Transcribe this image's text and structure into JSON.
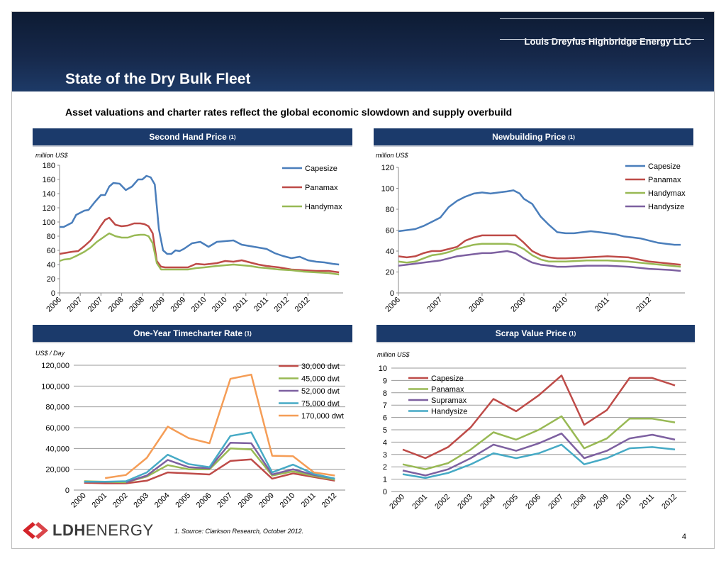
{
  "header": {
    "company": "Louis Dreyfus Highbridge Energy LLC",
    "title": "State of the Dry Bulk Fleet",
    "subtitle": "Asset valuations and charter rates reflect the global economic slowdown and supply overbuild"
  },
  "panels": {
    "p1": {
      "title": "Second Hand Price",
      "sup": "(1)",
      "unit": "million US$"
    },
    "p2": {
      "title": "Newbuilding Price",
      "sup": "(1)",
      "unit": "million US$"
    },
    "p3": {
      "title": "One-Year Timecharter Rate",
      "sup": "(1)",
      "unit": "US$ / Day"
    },
    "p4": {
      "title": "Scrap Value Price",
      "sup": "(1)",
      "unit": "million US$"
    }
  },
  "footer": {
    "footnote": "1.   Source: Clarkson Research, October 2012.",
    "page": "4",
    "logo_bold": "LDH",
    "logo_rest": "ENERGY"
  },
  "colors": {
    "blue": "#4a7ebb",
    "red": "#be4b48",
    "green": "#98b954",
    "purple": "#7d60a0",
    "teal": "#46aac5",
    "orange": "#f59d56"
  },
  "chart_data": [
    {
      "id": "second_hand",
      "type": "line",
      "ylim": [
        0,
        180
      ],
      "yticks": [
        0,
        20,
        40,
        60,
        80,
        100,
        120,
        140,
        160,
        180
      ],
      "xlim": [
        2006.0,
        2012.85
      ],
      "xticks": [
        2006.0,
        2006.5,
        2007.0,
        2007.5,
        2008.0,
        2008.5,
        2009.0,
        2009.5,
        2010.0,
        2010.5,
        2011.0,
        2011.5,
        2012.0
      ],
      "xticklabels": [
        "2006",
        "2007",
        "2007",
        "2008",
        "2008",
        "2009",
        "2009",
        "2010",
        "2010",
        "2011",
        "2011",
        "2012",
        "2012"
      ],
      "series": [
        {
          "name": "Capesize",
          "color": "#4a7ebb",
          "x": [
            2006.0,
            2006.1,
            2006.3,
            2006.4,
            2006.6,
            2006.7,
            2006.85,
            2007.0,
            2007.1,
            2007.2,
            2007.3,
            2007.45,
            2007.6,
            2007.75,
            2007.9,
            2008.0,
            2008.1,
            2008.2,
            2008.3,
            2008.4,
            2008.5,
            2008.6,
            2008.7,
            2008.8,
            2008.9,
            2009.0,
            2009.2,
            2009.4,
            2009.6,
            2009.8,
            2010.0,
            2010.2,
            2010.4,
            2010.6,
            2010.8,
            2011.0,
            2011.2,
            2011.4,
            2011.6,
            2011.8,
            2012.0,
            2012.2,
            2012.4,
            2012.6,
            2012.75
          ],
          "y": [
            93,
            93,
            99,
            110,
            116,
            117,
            128,
            138,
            138,
            150,
            155,
            154,
            145,
            150,
            160,
            160,
            165,
            163,
            153,
            90,
            60,
            55,
            55,
            60,
            59,
            62,
            70,
            72,
            65,
            72,
            73,
            74,
            68,
            66,
            64,
            62,
            56,
            52,
            49,
            51,
            46,
            44,
            43,
            41,
            40
          ]
        },
        {
          "name": "Panamax",
          "color": "#be4b48",
          "x": [
            2006.0,
            2006.1,
            2006.3,
            2006.45,
            2006.6,
            2006.75,
            2006.9,
            2007.0,
            2007.1,
            2007.2,
            2007.35,
            2007.5,
            2007.65,
            2007.8,
            2007.95,
            2008.05,
            2008.15,
            2008.25,
            2008.35,
            2008.45,
            2008.55,
            2008.7,
            2008.9,
            2009.1,
            2009.3,
            2009.5,
            2009.8,
            2010.0,
            2010.2,
            2010.4,
            2010.6,
            2010.8,
            2011.0,
            2011.3,
            2011.6,
            2011.9,
            2012.2,
            2012.5,
            2012.75
          ],
          "y": [
            55,
            56,
            58,
            59,
            66,
            74,
            86,
            95,
            103,
            106,
            96,
            94,
            95,
            98,
            98,
            97,
            94,
            84,
            45,
            37,
            36,
            36,
            36,
            36,
            41,
            40,
            42,
            45,
            44,
            46,
            43,
            40,
            38,
            36,
            33,
            32,
            31,
            31,
            29
          ]
        },
        {
          "name": "Handymax",
          "color": "#98b954",
          "x": [
            2006.0,
            2006.1,
            2006.25,
            2006.4,
            2006.6,
            2006.75,
            2006.9,
            2007.0,
            2007.1,
            2007.2,
            2007.35,
            2007.5,
            2007.65,
            2007.8,
            2007.95,
            2008.05,
            2008.15,
            2008.25,
            2008.35,
            2008.45,
            2008.55,
            2008.7,
            2008.9,
            2009.1,
            2009.3,
            2009.5,
            2009.8,
            2010.0,
            2010.2,
            2010.4,
            2010.6,
            2010.8,
            2011.0,
            2011.3,
            2011.6,
            2011.9,
            2012.2,
            2012.5,
            2012.75
          ],
          "y": [
            45,
            47,
            48,
            52,
            58,
            64,
            72,
            76,
            80,
            84,
            80,
            78,
            78,
            81,
            82,
            82,
            80,
            70,
            42,
            33,
            33,
            33,
            33,
            33,
            35,
            36,
            38,
            39,
            40,
            39,
            38,
            36,
            35,
            33,
            32,
            30,
            29,
            28,
            26
          ]
        }
      ]
    },
    {
      "id": "newbuilding",
      "type": "line",
      "ylim": [
        0,
        120
      ],
      "yticks": [
        0,
        20,
        40,
        60,
        80,
        100,
        120
      ],
      "xlim": [
        2006.0,
        2012.85
      ],
      "xticks": [
        2006.0,
        2007.0,
        2008.0,
        2009.0,
        2010.0,
        2011.0,
        2012.0
      ],
      "xticklabels": [
        "2006",
        "2007",
        "2008",
        "2009",
        "2010",
        "2011",
        "2012"
      ],
      "series": [
        {
          "name": "Capesize",
          "color": "#4a7ebb",
          "x": [
            2006.0,
            2006.2,
            2006.4,
            2006.6,
            2006.8,
            2007.0,
            2007.2,
            2007.4,
            2007.6,
            2007.8,
            2008.0,
            2008.2,
            2008.4,
            2008.6,
            2008.75,
            2008.9,
            2009.0,
            2009.2,
            2009.4,
            2009.6,
            2009.8,
            2010.0,
            2010.2,
            2010.4,
            2010.6,
            2010.8,
            2011.0,
            2011.2,
            2011.4,
            2011.6,
            2011.8,
            2012.0,
            2012.2,
            2012.4,
            2012.6,
            2012.75
          ],
          "y": [
            59,
            60,
            61,
            64,
            68,
            72,
            82,
            88,
            92,
            95,
            96,
            95,
            96,
            97,
            98,
            95,
            90,
            85,
            73,
            65,
            58,
            57,
            57,
            58,
            59,
            58,
            57,
            56,
            54,
            53,
            52,
            50,
            48,
            47,
            46,
            46
          ]
        },
        {
          "name": "Panamax",
          "color": "#be4b48",
          "x": [
            2006.0,
            2006.2,
            2006.4,
            2006.6,
            2006.8,
            2007.0,
            2007.2,
            2007.4,
            2007.6,
            2007.8,
            2008.0,
            2008.2,
            2008.4,
            2008.6,
            2008.8,
            2009.0,
            2009.2,
            2009.4,
            2009.6,
            2009.8,
            2010.0,
            2010.5,
            2011.0,
            2011.5,
            2012.0,
            2012.5,
            2012.75
          ],
          "y": [
            35,
            34,
            35,
            38,
            40,
            40,
            42,
            44,
            50,
            53,
            55,
            55,
            55,
            55,
            55,
            48,
            40,
            36,
            34,
            33,
            33,
            34,
            35,
            34,
            30,
            28,
            27
          ]
        },
        {
          "name": "Handymax",
          "color": "#98b954",
          "x": [
            2006.0,
            2006.2,
            2006.4,
            2006.6,
            2006.8,
            2007.0,
            2007.2,
            2007.4,
            2007.6,
            2007.8,
            2008.0,
            2008.2,
            2008.4,
            2008.6,
            2008.8,
            2009.0,
            2009.2,
            2009.4,
            2009.6,
            2009.8,
            2010.0,
            2010.5,
            2011.0,
            2011.5,
            2012.0,
            2012.5,
            2012.75
          ],
          "y": [
            30,
            29,
            30,
            33,
            36,
            37,
            39,
            42,
            44,
            46,
            47,
            47,
            47,
            47,
            46,
            42,
            36,
            32,
            30,
            30,
            30,
            31,
            31,
            30,
            28,
            26,
            25
          ]
        },
        {
          "name": "Handysize",
          "color": "#7d60a0",
          "x": [
            2006.0,
            2006.2,
            2006.4,
            2006.6,
            2006.8,
            2007.0,
            2007.2,
            2007.4,
            2007.6,
            2007.8,
            2008.0,
            2008.2,
            2008.4,
            2008.6,
            2008.8,
            2009.0,
            2009.2,
            2009.4,
            2009.6,
            2009.8,
            2010.0,
            2010.5,
            2011.0,
            2011.5,
            2012.0,
            2012.5,
            2012.75
          ],
          "y": [
            26,
            27,
            28,
            29,
            30,
            31,
            33,
            35,
            36,
            37,
            38,
            38,
            39,
            40,
            38,
            33,
            29,
            27,
            26,
            25,
            25,
            26,
            26,
            25,
            23,
            22,
            21
          ]
        }
      ]
    },
    {
      "id": "timecharter",
      "type": "line",
      "ylim": [
        0,
        120000
      ],
      "yticks": [
        0,
        20000,
        40000,
        60000,
        80000,
        100000,
        120000
      ],
      "yticklabels": [
        "0",
        "20,000",
        "40,000",
        "60,000",
        "80,000",
        "100,000",
        "120,000"
      ],
      "categories": [
        "2000",
        "2001",
        "2002",
        "2003",
        "2004",
        "2005",
        "2006",
        "2007",
        "2008",
        "2009",
        "2010",
        "2011",
        "2012"
      ],
      "series": [
        {
          "name": "30,000 dwt",
          "color": "#be4b48",
          "values": [
            7000,
            6500,
            6500,
            9000,
            17000,
            16000,
            15000,
            28000,
            29500,
            11000,
            16000,
            12500,
            9000
          ]
        },
        {
          "name": "45,000 dwt",
          "color": "#98b954",
          "values": [
            8500,
            8000,
            7500,
            13000,
            24000,
            20000,
            20000,
            40000,
            39000,
            14000,
            18000,
            13500,
            10000
          ]
        },
        {
          "name": "52,000 dwt",
          "color": "#7d60a0",
          "values": [
            null,
            null,
            7500,
            14000,
            29000,
            22000,
            21000,
            45500,
            45000,
            15000,
            20000,
            14500,
            11000
          ]
        },
        {
          "name": "75,000 dwt",
          "color": "#46aac5",
          "values": [
            8000,
            8000,
            8500,
            17000,
            34000,
            25000,
            22000,
            52000,
            55500,
            17000,
            24500,
            15500,
            11000
          ]
        },
        {
          "name": "170,000 dwt",
          "color": "#f59d56",
          "values": [
            null,
            11500,
            14500,
            31000,
            61000,
            50000,
            45000,
            107000,
            111000,
            33000,
            32500,
            17000,
            14000
          ]
        }
      ]
    },
    {
      "id": "scrap",
      "type": "line",
      "ylim": [
        0,
        10
      ],
      "yticks": [
        0,
        1,
        2,
        3,
        4,
        5,
        6,
        7,
        8,
        9,
        10
      ],
      "categories": [
        "2000",
        "2001",
        "2002",
        "2003",
        "2004",
        "2005",
        "2006",
        "2007",
        "2008",
        "2009",
        "2010",
        "2011",
        "2012"
      ],
      "series": [
        {
          "name": "Capesize",
          "color": "#be4b48",
          "values": [
            3.4,
            2.7,
            3.6,
            5.2,
            7.5,
            6.5,
            7.8,
            9.4,
            5.4,
            6.6,
            9.2,
            9.2,
            8.6
          ]
        },
        {
          "name": "Panamax",
          "color": "#98b954",
          "values": [
            2.2,
            1.8,
            2.3,
            3.4,
            4.8,
            4.2,
            5.0,
            6.1,
            3.5,
            4.3,
            5.9,
            5.9,
            5.6
          ]
        },
        {
          "name": "Supramax",
          "color": "#7d60a0",
          "values": [
            1.7,
            1.3,
            1.8,
            2.7,
            3.8,
            3.3,
            3.9,
            4.7,
            2.7,
            3.3,
            4.3,
            4.6,
            4.2
          ]
        },
        {
          "name": "Handysize",
          "color": "#46aac5",
          "values": [
            1.4,
            1.1,
            1.5,
            2.2,
            3.1,
            2.7,
            3.1,
            3.8,
            2.2,
            2.7,
            3.5,
            3.6,
            3.4
          ]
        }
      ]
    }
  ]
}
